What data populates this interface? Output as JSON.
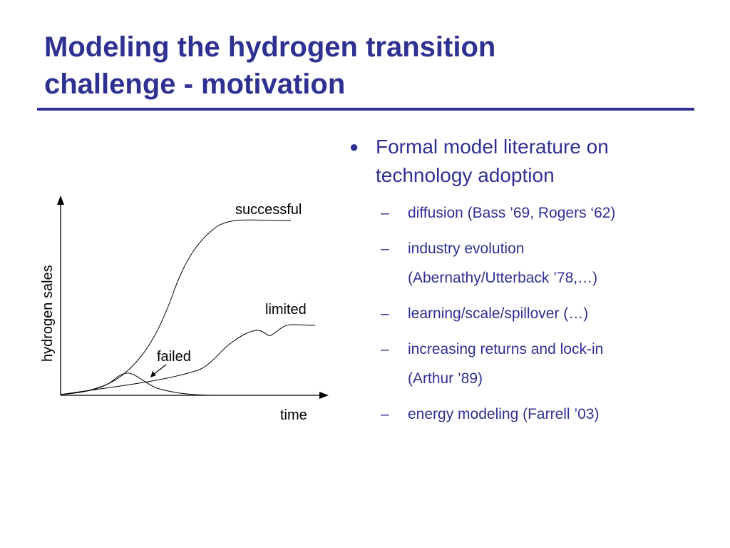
{
  "slide": {
    "title_line1": "Modeling the hydrogen transition",
    "title_line2": "challenge - motivation",
    "accent_color": "#2E3192"
  },
  "diagram": {
    "y_axis_label": "hydrogen sales",
    "x_axis_label": "time",
    "curve_labels": {
      "successful": "successful",
      "limited": "limited",
      "failed": "failed"
    }
  },
  "bullets": {
    "main": {
      "marker": "●",
      "line1": "Formal model literature on",
      "line2": "technology adoption"
    },
    "sub_marker": "–",
    "sub_items": [
      {
        "line1": "diffusion (Bass ’69, Rogers ‘62)"
      },
      {
        "line1": "industry evolution",
        "line2": "(Abernathy/Utterback ’78,…)"
      },
      {
        "line1": "learning/scale/spillover (…)"
      },
      {
        "line1": "increasing returns and lock-in",
        "line2": "(Arthur ’89)"
      },
      {
        "line1": "energy modeling (Farrell ’03)"
      }
    ]
  }
}
